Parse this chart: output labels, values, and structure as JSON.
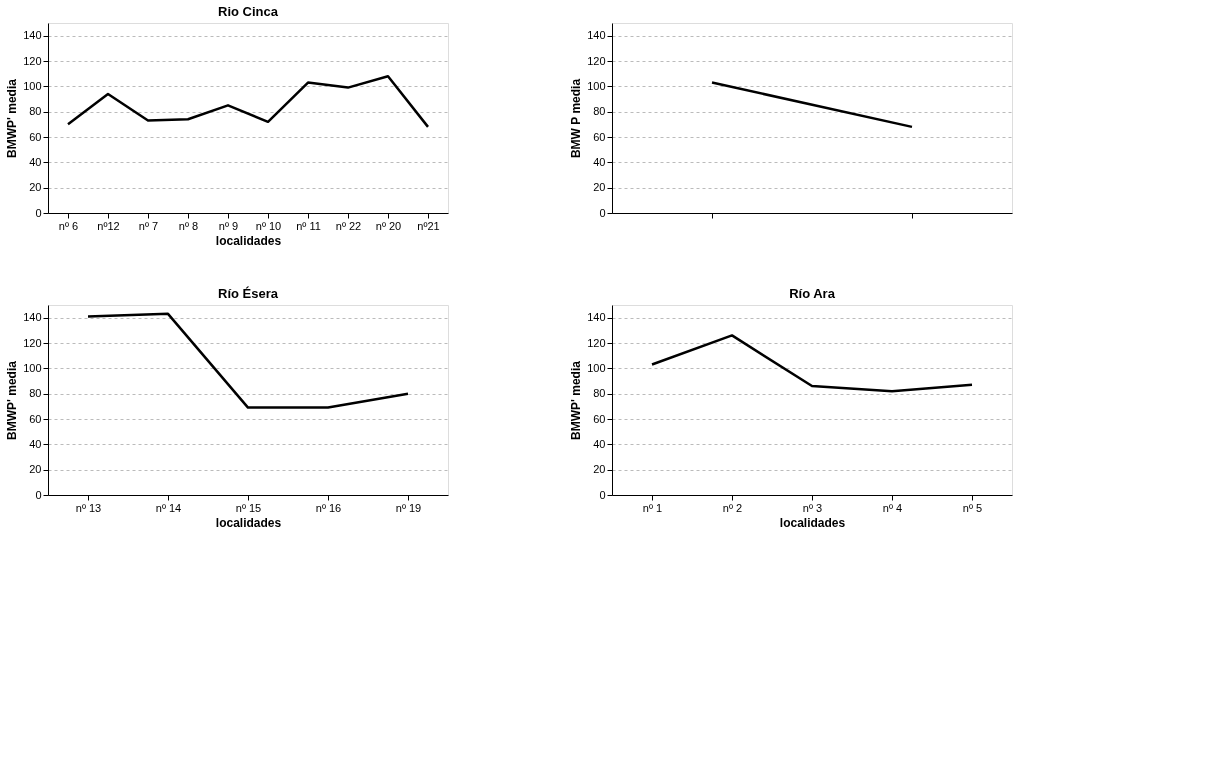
{
  "chart_data": [
    {
      "type": "line",
      "title": "Rio Cinca",
      "xlabel": "localidades",
      "ylabel": "BMWP' media",
      "categories": [
        "nº 6",
        "nº12",
        "nº 7",
        "nº 8",
        "nº 9",
        "nº 10",
        "nº 11",
        "nº 22",
        "nº 20",
        "nº21"
      ],
      "series": [
        {
          "color": "#000000",
          "values": [
            70,
            94,
            73,
            74,
            85,
            72,
            103,
            99,
            108,
            68
          ]
        }
      ],
      "ylim": [
        0,
        150
      ],
      "yticks": [
        0,
        20,
        40,
        60,
        80,
        100,
        120,
        140
      ],
      "grid": "y",
      "legend": false,
      "marker": "none"
    },
    {
      "type": "line",
      "ylabel": "BMW P media",
      "categories": [
        null,
        null
      ],
      "series": [
        {
          "color": "#000000",
          "values": [
            103,
            68
          ]
        }
      ],
      "ylim": [
        0,
        150
      ],
      "yticks": [
        0,
        20,
        40,
        60,
        80,
        100,
        120,
        140
      ],
      "grid": "y",
      "legend": false,
      "marker": "none",
      "tick_labels": "y"
    },
    {
      "type": "line",
      "title": "Río Ésera",
      "xlabel": "localidades",
      "ylabel": "BMWP' media",
      "categories": [
        "nº 13",
        "nº 14",
        "nº 15",
        "nº 16",
        "nº 19"
      ],
      "series": [
        {
          "color": "#000000",
          "values": [
            141,
            143,
            69,
            69,
            80
          ]
        }
      ],
      "ylim": [
        0,
        150
      ],
      "yticks": [
        0,
        20,
        40,
        60,
        80,
        100,
        120,
        140
      ],
      "grid": "y",
      "legend": false,
      "marker": "none"
    },
    {
      "type": "line",
      "title": "Río Ara",
      "xlabel": "localidades",
      "ylabel": "BMWP' media",
      "categories": [
        "nº 1",
        "nº 2",
        "nº 3",
        "nº 4",
        "nº 5"
      ],
      "series": [
        {
          "color": "#000000",
          "values": [
            103,
            126,
            86,
            82,
            87
          ]
        }
      ],
      "ylim": [
        0,
        150
      ],
      "yticks": [
        0,
        20,
        40,
        60,
        80,
        100,
        120,
        140
      ],
      "grid": "y",
      "legend": false,
      "marker": "none"
    }
  ]
}
